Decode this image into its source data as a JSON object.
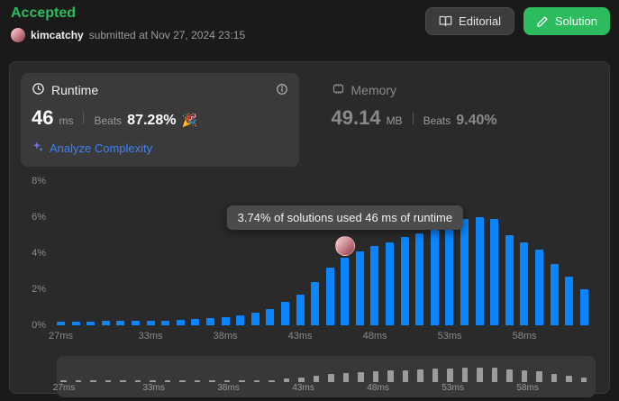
{
  "header": {
    "status": "Accepted",
    "username": "kimcatchy",
    "submitted_text": "submitted at Nov 27, 2024 23:15",
    "buttons": {
      "editorial": "Editorial",
      "solution": "Solution"
    }
  },
  "stats": {
    "runtime": {
      "label": "Runtime",
      "value": "46",
      "unit": "ms",
      "beats_label": "Beats",
      "beats_value": "87.28%",
      "beats_emoji": "🎉",
      "analyze_link": "Analyze Complexity"
    },
    "memory": {
      "label": "Memory",
      "value": "49.14",
      "unit": "MB",
      "beats_label": "Beats",
      "beats_value": "9.40%"
    }
  },
  "chart_tooltip": "3.74% of solutions used 46 ms of runtime",
  "chart_data": {
    "type": "bar",
    "x": [
      27,
      28,
      29,
      30,
      31,
      32,
      33,
      34,
      35,
      36,
      37,
      38,
      39,
      40,
      41,
      42,
      43,
      44,
      45,
      46,
      47,
      48,
      49,
      50,
      51,
      52,
      53,
      54,
      55,
      56,
      57,
      58,
      59,
      60,
      61,
      62
    ],
    "values": [
      0.22,
      0.22,
      0.22,
      0.24,
      0.24,
      0.24,
      0.26,
      0.26,
      0.3,
      0.34,
      0.4,
      0.45,
      0.55,
      0.7,
      0.9,
      1.3,
      1.7,
      2.4,
      3.2,
      3.74,
      4.1,
      4.4,
      4.6,
      4.9,
      5.1,
      5.3,
      5.5,
      5.9,
      6.0,
      5.9,
      5.0,
      4.6,
      4.2,
      3.4,
      2.7,
      2.0
    ],
    "x_tick_labels": [
      "27ms",
      "33ms",
      "38ms",
      "43ms",
      "48ms",
      "53ms",
      "58ms"
    ],
    "x_tick_values": [
      27,
      33,
      38,
      43,
      48,
      53,
      58
    ],
    "y_tick_labels": [
      "8%",
      "6%",
      "4%",
      "2%",
      "0%"
    ],
    "ylim": [
      0,
      8
    ],
    "highlight_x": 46,
    "highlight_value": 3.74,
    "bar_color": "#0a84ff",
    "mini_bar_color": "#9c9c9c",
    "legend": false,
    "grid": false
  },
  "colors": {
    "accepted_green": "#2cbb5d",
    "solution_button": "#2cbb5d",
    "bar_blue": "#0a84ff",
    "analyze_link_blue": "#3b82f6",
    "page_bg": "#1a1a1a",
    "card_bg": "#2a2a2a",
    "tooltip_bg": "#4b4b4b"
  }
}
